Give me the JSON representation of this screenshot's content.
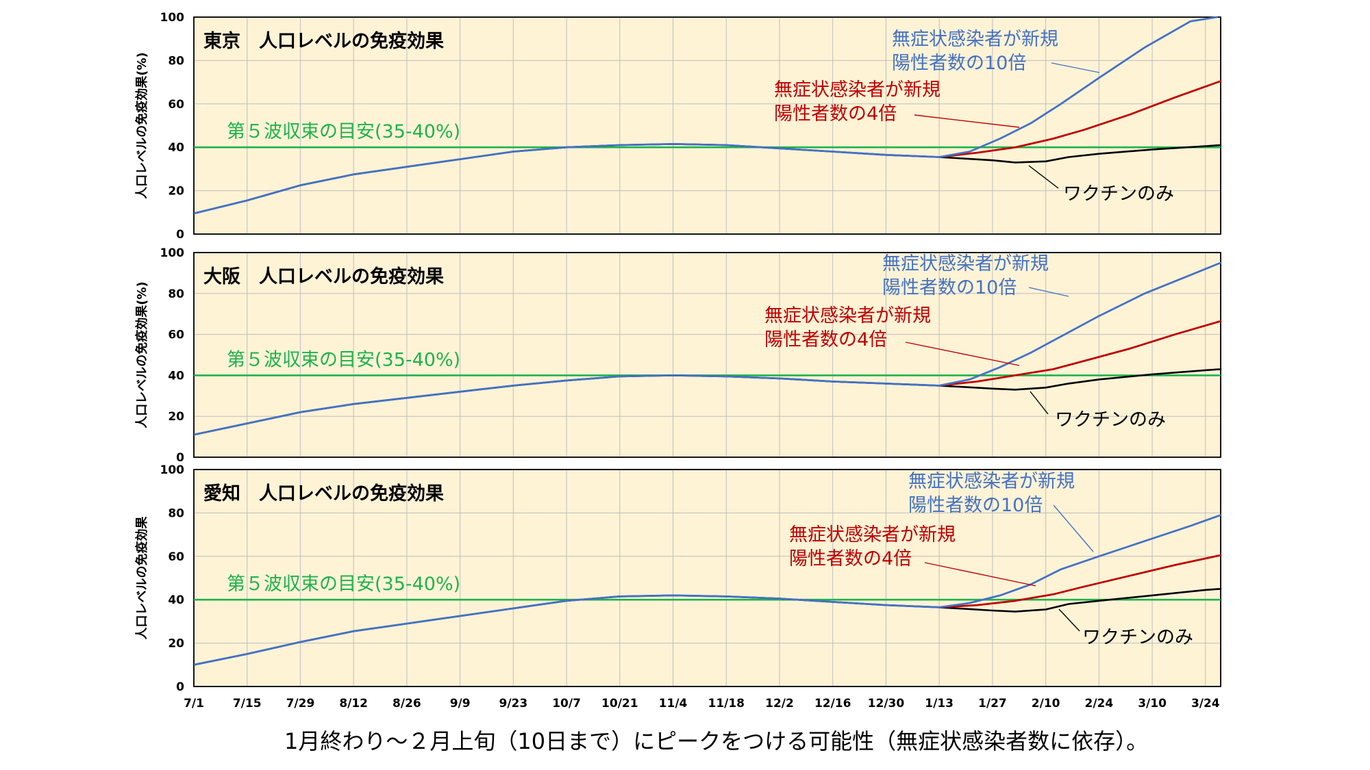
{
  "caption": "1月終わり～２月上旬（10日まで）にピークをつける可能性（無症状感染者数に依存）。",
  "colors": {
    "blue": "#4472c4",
    "red": "#c00000",
    "black": "#000000",
    "green": "#1db34a",
    "panel_background": "#fff3d6",
    "grid": "#bdbdbd"
  },
  "chart_data": [
    {
      "type": "line",
      "title": "東京　人口レベルの免疫効果",
      "ylabel": "人口レベルの免疫効果(%)",
      "xlabel": "",
      "ylim": [
        0,
        100
      ],
      "yticks": [
        "0",
        "20",
        "40",
        "60",
        "80",
        "100"
      ],
      "xlim": [
        0,
        270
      ],
      "xticks": [
        "7/1",
        "7/15",
        "7/29",
        "8/12",
        "8/26",
        "9/9",
        "9/23",
        "10/7",
        "10/21",
        "11/4",
        "11/18",
        "12/2",
        "12/16",
        "12/30",
        "1/13",
        "1/27",
        "2/10",
        "2/24",
        "3/10",
        "3/24"
      ],
      "grid": true,
      "threshold": {
        "value": 40,
        "label": "第５波収束の目安(35-40%)",
        "color": "#1db34a"
      },
      "series": [
        {
          "name": "ワクチンのみ",
          "color": "#000000",
          "x": [
            0,
            14,
            28,
            42,
            56,
            70,
            84,
            98,
            112,
            126,
            140,
            154,
            168,
            182,
            196,
            210,
            216,
            224,
            230,
            238,
            252,
            266,
            270
          ],
          "y": [
            9.5,
            15.5,
            22.5,
            27.5,
            31,
            34.5,
            38,
            40,
            41,
            41.5,
            41,
            39.5,
            38,
            36.5,
            35.5,
            34,
            33,
            33.5,
            35.5,
            37,
            39,
            40.5,
            41
          ]
        },
        {
          "name": "無症状感染者が新規\n陽性者数の4倍",
          "color": "#c00000",
          "x": [
            196,
            206,
            216,
            226,
            234,
            246,
            258,
            270
          ],
          "y": [
            35.5,
            37.5,
            40,
            44,
            48,
            55,
            63,
            70.5
          ]
        },
        {
          "name": "無症状感染者が新規\n陽性者数の10倍",
          "color": "#4472c4",
          "x": [
            196,
            204,
            212,
            220,
            228,
            238,
            250,
            262,
            269
          ],
          "y": [
            35.5,
            38,
            44,
            51,
            60,
            72,
            86,
            98,
            100
          ]
        }
      ],
      "annotations": [
        {
          "text": [
            "無症状感染者が新規",
            "陽性者数の10倍"
          ],
          "series": "blue"
        },
        {
          "text": [
            "無症状感染者が新規",
            "陽性者数の4倍"
          ],
          "series": "red"
        },
        {
          "text": [
            "ワクチンのみ"
          ],
          "series": "black"
        }
      ]
    },
    {
      "type": "line",
      "title": "大阪　人口レベルの免疫効果",
      "ylabel": "人口レベルの免疫効果(%)",
      "xlabel": "",
      "ylim": [
        0,
        100
      ],
      "yticks": [
        "0",
        "20",
        "40",
        "60",
        "80",
        "100"
      ],
      "xlim": [
        0,
        270
      ],
      "xticks": [
        "7/1",
        "7/15",
        "7/29",
        "8/12",
        "8/26",
        "9/9",
        "9/23",
        "10/7",
        "10/21",
        "11/4",
        "11/18",
        "12/2",
        "12/16",
        "12/30",
        "1/13",
        "1/27",
        "2/10",
        "2/24",
        "3/10",
        "3/24"
      ],
      "grid": true,
      "threshold": {
        "value": 40,
        "label": "第５波収束の目安(35-40%)",
        "color": "#1db34a"
      },
      "series": [
        {
          "name": "ワクチンのみ",
          "color": "#000000",
          "x": [
            0,
            14,
            28,
            42,
            56,
            70,
            84,
            98,
            112,
            126,
            140,
            154,
            168,
            182,
            196,
            210,
            216,
            224,
            230,
            238,
            252,
            266,
            270
          ],
          "y": [
            11,
            16.5,
            22,
            26,
            29,
            32,
            35,
            37.5,
            39.5,
            40,
            39.5,
            38.5,
            37,
            36,
            35,
            33.5,
            33,
            34,
            36,
            38,
            40.5,
            42.5,
            43
          ]
        },
        {
          "name": "無症状感染者が新規\n陽性者数の4倍",
          "color": "#c00000",
          "x": [
            196,
            206,
            216,
            226,
            234,
            246,
            258,
            270
          ],
          "y": [
            35,
            37,
            40,
            43,
            47,
            53,
            60,
            66.5
          ]
        },
        {
          "name": "無症状感染者が新規\n陽性者数の10倍",
          "color": "#4472c4",
          "x": [
            196,
            204,
            212,
            220,
            228,
            238,
            250,
            262,
            270
          ],
          "y": [
            35,
            38,
            44,
            51,
            59,
            69,
            80,
            89,
            95
          ]
        }
      ],
      "annotations": [
        {
          "text": [
            "無症状感染者が新規",
            "陽性者数の10倍"
          ],
          "series": "blue"
        },
        {
          "text": [
            "無症状感染者が新規",
            "陽性者数の4倍"
          ],
          "series": "red"
        },
        {
          "text": [
            "ワクチンのみ"
          ],
          "series": "black"
        }
      ]
    },
    {
      "type": "line",
      "title": "愛知　人口レベルの免疫効果",
      "ylabel": "人口レベルの免疫効果",
      "xlabel": "",
      "ylim": [
        0,
        100
      ],
      "yticks": [
        "0",
        "20",
        "40",
        "60",
        "80",
        "100"
      ],
      "xlim": [
        0,
        270
      ],
      "xticks": [
        "7/1",
        "7/15",
        "7/29",
        "8/12",
        "8/26",
        "9/9",
        "9/23",
        "10/7",
        "10/21",
        "11/4",
        "11/18",
        "12/2",
        "12/16",
        "12/30",
        "1/13",
        "1/27",
        "2/10",
        "2/24",
        "3/10",
        "3/24"
      ],
      "grid": true,
      "threshold": {
        "value": 40,
        "label": "第５波収束の目安(35-40%)",
        "color": "#1db34a"
      },
      "series": [
        {
          "name": "ワクチンのみ",
          "color": "#000000",
          "x": [
            0,
            14,
            28,
            42,
            56,
            70,
            84,
            98,
            112,
            126,
            140,
            154,
            168,
            182,
            196,
            210,
            216,
            224,
            230,
            238,
            252,
            266,
            270
          ],
          "y": [
            10,
            15,
            20.5,
            25.5,
            29,
            32.5,
            36,
            39.5,
            41.5,
            42,
            41.5,
            40.5,
            39,
            37.5,
            36.5,
            35,
            34.5,
            35.5,
            38,
            39.5,
            42,
            44.5,
            45
          ]
        },
        {
          "name": "無症状感染者が新規\n陽性者数の4倍",
          "color": "#c00000",
          "x": [
            196,
            206,
            216,
            226,
            234,
            246,
            258,
            270
          ],
          "y": [
            36.5,
            37.5,
            39.5,
            42.5,
            46,
            51,
            56,
            60.5
          ]
        },
        {
          "name": "無症状感染者が新規\n陽性者数の10倍",
          "color": "#4472c4",
          "x": [
            196,
            204,
            212,
            220,
            228,
            238,
            250,
            262,
            270
          ],
          "y": [
            36.5,
            38.5,
            42,
            47,
            54,
            60,
            67,
            74,
            79
          ]
        }
      ],
      "annotations": [
        {
          "text": [
            "無症状感染者が新規",
            "陽性者数の10倍"
          ],
          "series": "blue"
        },
        {
          "text": [
            "無症状感染者が新規",
            "陽性者数の4倍"
          ],
          "series": "red"
        },
        {
          "text": [
            "ワクチンのみ"
          ],
          "series": "black"
        }
      ]
    }
  ]
}
